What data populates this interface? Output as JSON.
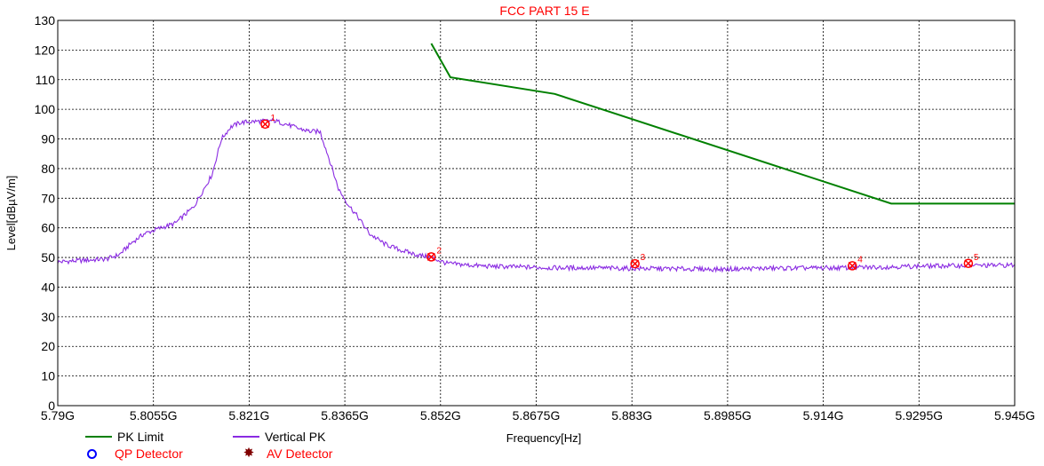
{
  "chart_data": {
    "type": "line",
    "title": "FCC PART 15 E",
    "xlabel": "Frequency[Hz]",
    "ylabel": "Level[dBµV/m]",
    "xlim": [
      5.79,
      5.945
    ],
    "ylim": [
      0,
      130
    ],
    "x_ticks": [
      "5.79G",
      "5.8055G",
      "5.821G",
      "5.8365G",
      "5.852G",
      "5.8675G",
      "5.883G",
      "5.8985G",
      "5.914G",
      "5.9295G",
      "5.945G"
    ],
    "y_ticks": [
      "0",
      "10",
      "20",
      "30",
      "40",
      "50",
      "60",
      "70",
      "80",
      "90",
      "100",
      "110",
      "120",
      "130"
    ],
    "grid": true,
    "legend_placement": "bottom-left, below plot",
    "series": [
      {
        "name": "PK Limit",
        "color": "#008000",
        "x": [
          5.8505,
          5.8536,
          5.8705,
          5.925,
          5.945
        ],
        "y": [
          122.2,
          110.8,
          105.2,
          68.2,
          68.2
        ]
      },
      {
        "name": "Vertical PK",
        "color": "#8a2be2",
        "x": [
          5.79,
          5.794,
          5.798,
          5.8,
          5.802,
          5.804,
          5.806,
          5.809,
          5.812,
          5.815,
          5.8165,
          5.818,
          5.8195,
          5.821,
          5.823,
          5.825,
          5.827,
          5.829,
          5.831,
          5.8325,
          5.834,
          5.8355,
          5.837,
          5.8385,
          5.8405,
          5.843,
          5.8455,
          5.848,
          5.8505,
          5.853,
          5.856,
          5.86,
          5.865,
          5.87,
          5.876,
          5.883,
          5.89,
          5.897,
          5.903,
          5.91,
          5.9165,
          5.922,
          5.928,
          5.9345,
          5.94,
          5.945
        ],
        "y": [
          48.5,
          49,
          49.5,
          51,
          55,
          58,
          59.5,
          61.5,
          67,
          78,
          90,
          94,
          95.5,
          95.8,
          96,
          96.2,
          95,
          93.5,
          92.5,
          92.5,
          83,
          73,
          68,
          64,
          58,
          54.5,
          52.5,
          51,
          50,
          48,
          47.5,
          47,
          46.8,
          46.5,
          46.5,
          46.3,
          46.2,
          46,
          46.3,
          46.4,
          46.5,
          46.7,
          47,
          47.2,
          47.3,
          47.4
        ]
      }
    ],
    "markers": [
      {
        "label": "1",
        "x": 5.8236,
        "y": 95.0
      },
      {
        "label": "2",
        "x": 5.8505,
        "y": 50.2
      },
      {
        "label": "3",
        "x": 5.8835,
        "y": 47.9
      },
      {
        "label": "4",
        "x": 5.9187,
        "y": 47.2
      },
      {
        "label": "5",
        "x": 5.9375,
        "y": 48.0
      }
    ],
    "detector_legend": [
      {
        "name": "QP Detector",
        "color": "#0000ff",
        "symbol": "circle"
      },
      {
        "name": "AV Detector",
        "color": "#800000",
        "symbol": "star"
      }
    ]
  },
  "colors": {
    "title": "#ff0000",
    "legend_text": "#000000",
    "detector_text": "#ff0000",
    "marker": "#ff0000",
    "grid": "#000000"
  },
  "legend_symbols": {
    "av": "✸"
  }
}
